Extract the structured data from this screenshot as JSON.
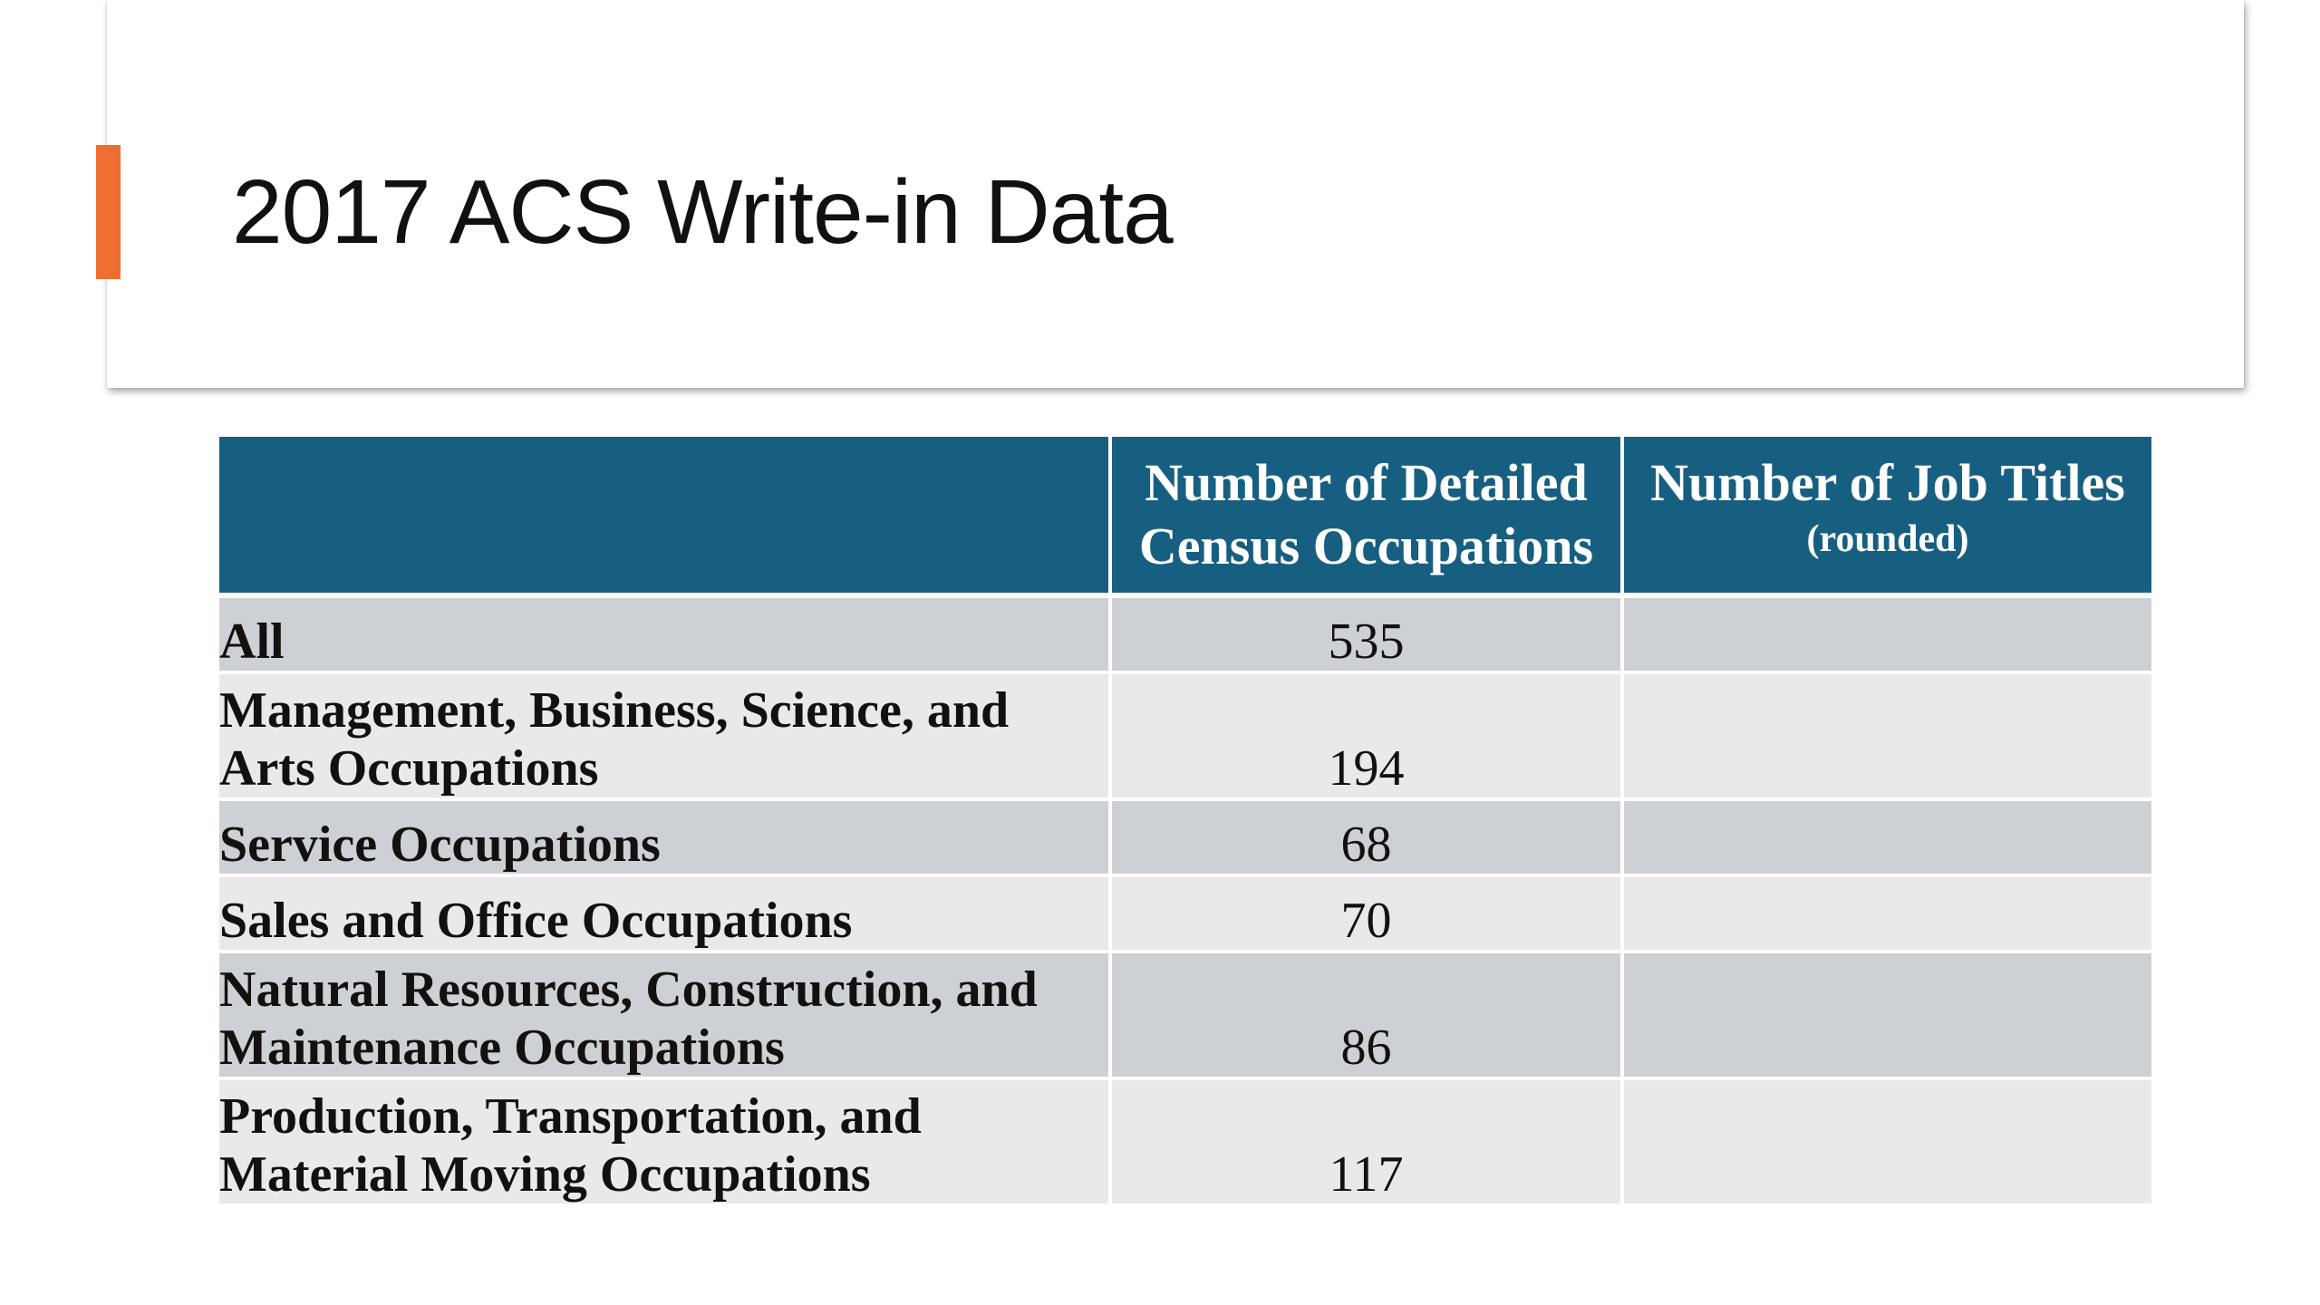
{
  "slide": {
    "title": "2017 ACS Write-in Data",
    "accent_color": "#ee6e2f"
  },
  "table": {
    "header_color": "#175f80",
    "headers": {
      "col1": "",
      "col2": "Number of Detailed Census Occupations",
      "col3": "Number of Job Titles",
      "col3_sub": "(rounded)"
    },
    "rows": [
      {
        "label": "All",
        "occupations": "535",
        "job_titles": ""
      },
      {
        "label": "Management,  Business, Science, and Arts Occupations",
        "occupations": "194",
        "job_titles": ""
      },
      {
        "label": "Service Occupations",
        "occupations": "68",
        "job_titles": ""
      },
      {
        "label": "Sales and Office Occupations",
        "occupations": "70",
        "job_titles": ""
      },
      {
        "label": "Natural Resources, Construction, and Maintenance Occupations",
        "occupations": "86",
        "job_titles": ""
      },
      {
        "label": "Production, Transportation, and Material Moving Occupations",
        "occupations": "117",
        "job_titles": ""
      }
    ]
  }
}
